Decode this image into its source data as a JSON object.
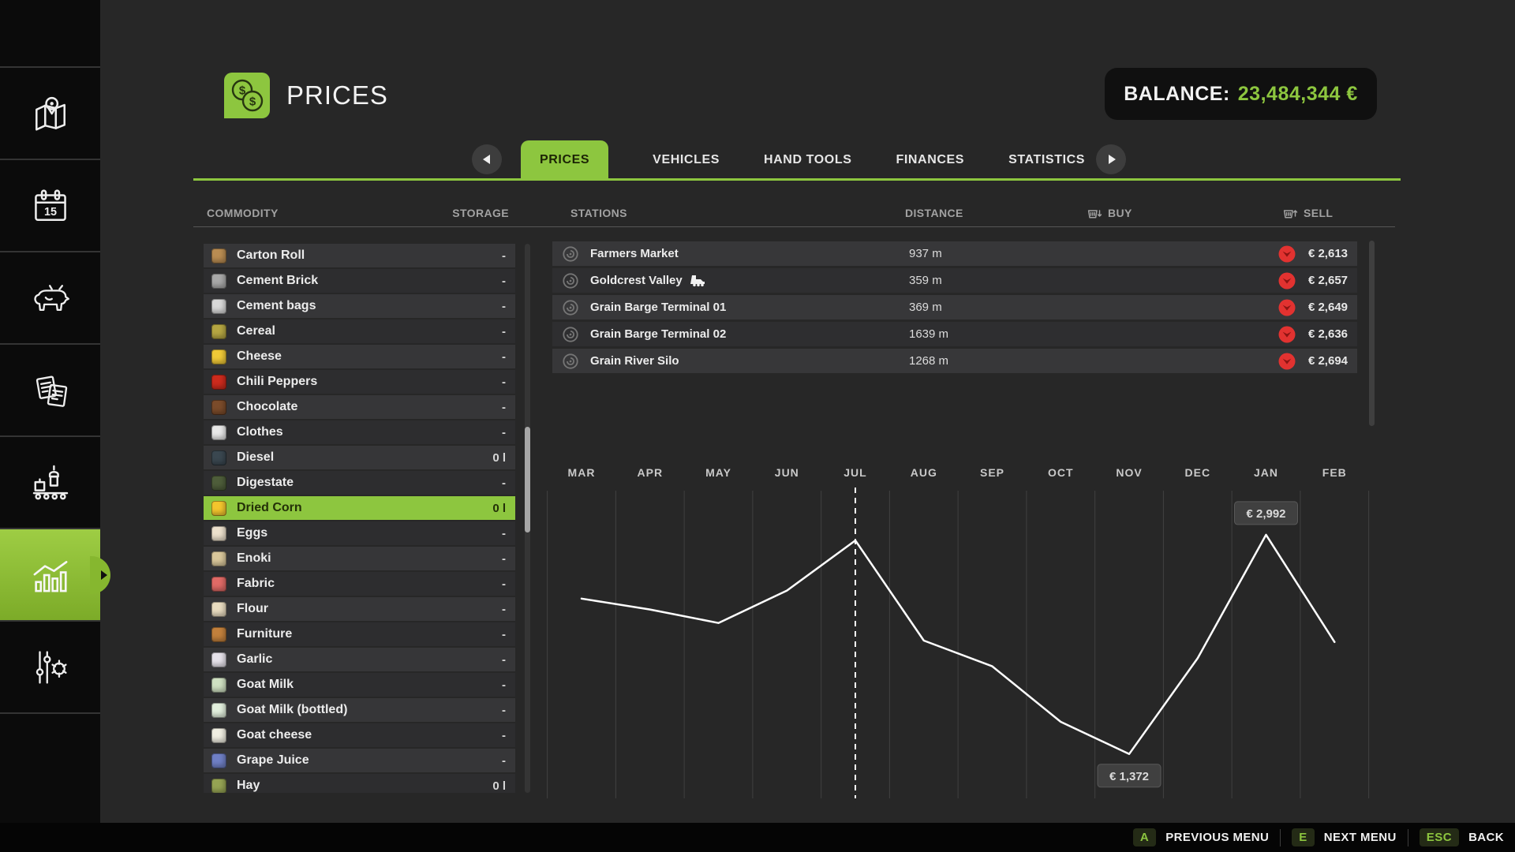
{
  "colors": {
    "accent_green": "#8dc63f",
    "trend_red": "#e23230",
    "line_white": "#ffffff"
  },
  "sidebar": {
    "calendar_day": "15",
    "items": [
      {
        "id": "map",
        "icon": "map-icon",
        "selected": false
      },
      {
        "id": "calendar",
        "icon": "calendar-icon",
        "selected": false
      },
      {
        "id": "animals",
        "icon": "cow-icon",
        "selected": false
      },
      {
        "id": "contracts",
        "icon": "documents-icon",
        "selected": false
      },
      {
        "id": "production",
        "icon": "production-icon",
        "selected": false
      },
      {
        "id": "statistics",
        "icon": "statistics-icon",
        "selected": true
      },
      {
        "id": "settings",
        "icon": "settings-icon",
        "selected": false
      }
    ]
  },
  "header": {
    "title": "PRICES",
    "balance_label": "BALANCE:",
    "balance_value": "23,484,344 €"
  },
  "tabs": {
    "active": "PRICES",
    "items": [
      "PRICES",
      "VEHICLES",
      "HAND TOOLS",
      "FINANCES",
      "STATISTICS"
    ]
  },
  "columns": {
    "commodity": "COMMODITY",
    "storage": "STORAGE",
    "stations": "STATIONS",
    "distance": "DISTANCE",
    "buy": "BUY",
    "sell": "SELL"
  },
  "commodities": [
    {
      "name": "Carton Roll",
      "storage": "-",
      "icon_color": "#b98c52",
      "selected": false
    },
    {
      "name": "Cement Brick",
      "storage": "-",
      "icon_color": "#a8a8a8",
      "selected": false
    },
    {
      "name": "Cement bags",
      "storage": "-",
      "icon_color": "#d9d9d9",
      "selected": false
    },
    {
      "name": "Cereal",
      "storage": "-",
      "icon_color": "#b5a642",
      "selected": false
    },
    {
      "name": "Cheese",
      "storage": "-",
      "icon_color": "#f0c937",
      "selected": false
    },
    {
      "name": "Chili Peppers",
      "storage": "-",
      "icon_color": "#cc2b1d",
      "selected": false
    },
    {
      "name": "Chocolate",
      "storage": "-",
      "icon_color": "#7b4b2a",
      "selected": false
    },
    {
      "name": "Clothes",
      "storage": "-",
      "icon_color": "#e8e8e8",
      "selected": false
    },
    {
      "name": "Diesel",
      "storage": "0 l",
      "icon_color": "#3a4750",
      "selected": false
    },
    {
      "name": "Digestate",
      "storage": "-",
      "icon_color": "#4e5d3a",
      "selected": false
    },
    {
      "name": "Dried Corn",
      "storage": "0 l",
      "icon_color": "#f3c52d",
      "selected": true
    },
    {
      "name": "Eggs",
      "storage": "-",
      "icon_color": "#ece0cc",
      "selected": false
    },
    {
      "name": "Enoki",
      "storage": "-",
      "icon_color": "#d9c79b",
      "selected": false
    },
    {
      "name": "Fabric",
      "storage": "-",
      "icon_color": "#e06a66",
      "selected": false
    },
    {
      "name": "Flour",
      "storage": "-",
      "icon_color": "#e9dcc0",
      "selected": false
    },
    {
      "name": "Furniture",
      "storage": "-",
      "icon_color": "#c2803c",
      "selected": false
    },
    {
      "name": "Garlic",
      "storage": "-",
      "icon_color": "#e6e2ea",
      "selected": false
    },
    {
      "name": "Goat Milk",
      "storage": "-",
      "icon_color": "#cfe0c2",
      "selected": false
    },
    {
      "name": "Goat Milk (bottled)",
      "storage": "-",
      "icon_color": "#e2efdd",
      "selected": false
    },
    {
      "name": "Goat cheese",
      "storage": "-",
      "icon_color": "#f0eee2",
      "selected": false
    },
    {
      "name": "Grape Juice",
      "storage": "-",
      "icon_color": "#6f7fc4",
      "selected": false
    },
    {
      "name": "Hay",
      "storage": "0 l",
      "icon_color": "#95a353",
      "selected": false
    }
  ],
  "stations": [
    {
      "name": "Farmers Market",
      "distance": "937 m",
      "price": "€ 2,613",
      "train": false
    },
    {
      "name": "Goldcrest Valley",
      "distance": "359 m",
      "price": "€ 2,657",
      "train": true
    },
    {
      "name": "Grain Barge Terminal 01",
      "distance": "369 m",
      "price": "€ 2,649",
      "train": false
    },
    {
      "name": "Grain Barge Terminal 02",
      "distance": "1639 m",
      "price": "€ 2,636",
      "train": false
    },
    {
      "name": "Grain River Silo",
      "distance": "1268 m",
      "price": "€ 2,694",
      "train": false
    }
  ],
  "chart_data": {
    "type": "line",
    "title": "",
    "categories": [
      "MAR",
      "APR",
      "MAY",
      "JUN",
      "JUL",
      "AUG",
      "SEP",
      "OCT",
      "NOV",
      "DEC",
      "JAN",
      "FEB"
    ],
    "values": [
      2520,
      2440,
      2340,
      2580,
      2950,
      2210,
      2020,
      1610,
      1372,
      2080,
      2992,
      2200
    ],
    "ylim": [
      1100,
      3300
    ],
    "grid": "vertical-only",
    "legend": "none",
    "current_marker_month": "JUL",
    "annotations": [
      {
        "month": "JAN",
        "value": 2992,
        "label": "€ 2,992",
        "placement": "above"
      },
      {
        "month": "NOV",
        "value": 1372,
        "label": "€ 1,372",
        "placement": "below"
      }
    ]
  },
  "footer": {
    "items": [
      {
        "key": "A",
        "label": "PREVIOUS MENU"
      },
      {
        "key": "E",
        "label": "NEXT MENU"
      },
      {
        "key": "ESC",
        "label": "BACK"
      }
    ]
  }
}
